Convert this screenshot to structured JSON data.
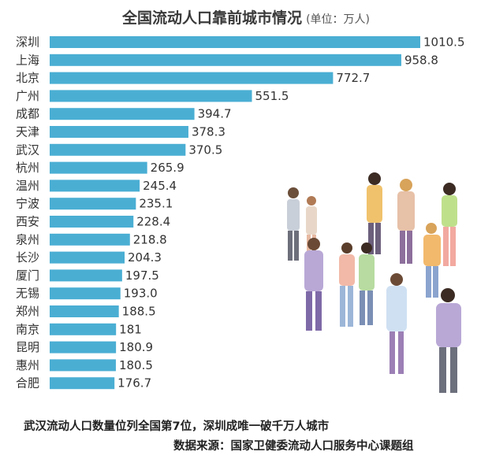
{
  "title": "全国流动人口靠前城市情况",
  "unit": "(单位：万人)",
  "chart_data": {
    "type": "bar",
    "orientation": "horizontal",
    "title": "全国流动人口靠前城市情况",
    "unit": "(单位：万人)",
    "categories": [
      "深圳",
      "上海",
      "北京",
      "广州",
      "成都",
      "天津",
      "武汉",
      "杭州",
      "温州",
      "宁波",
      "西安",
      "泉州",
      "长沙",
      "厦门",
      "无锡",
      "郑州",
      "南京",
      "昆明",
      "惠州",
      "合肥"
    ],
    "values": [
      1010.5,
      958.8,
      772.7,
      551.5,
      394.7,
      378.3,
      370.5,
      265.9,
      245.4,
      235.1,
      228.4,
      218.8,
      204.3,
      197.5,
      193.0,
      188.5,
      181,
      180.9,
      180.5,
      176.7
    ],
    "value_labels": [
      "1010.5",
      "958.8",
      "772.7",
      "551.5",
      "394.7",
      "378.3",
      "370.5",
      "265.9",
      "245.4",
      "235.1",
      "228.4",
      "218.8",
      "204.3",
      "197.5",
      "193.0",
      "188.5",
      "181",
      "180.9",
      "180.5",
      "176.7"
    ],
    "bar_color": "#4aaed3",
    "grid": false,
    "legend": "none"
  },
  "caption": "武汉流动人口数量位列全国第7位，深圳成唯一破千万人城市",
  "source": "数据来源：国家卫健委流动人口服务中心课题组"
}
